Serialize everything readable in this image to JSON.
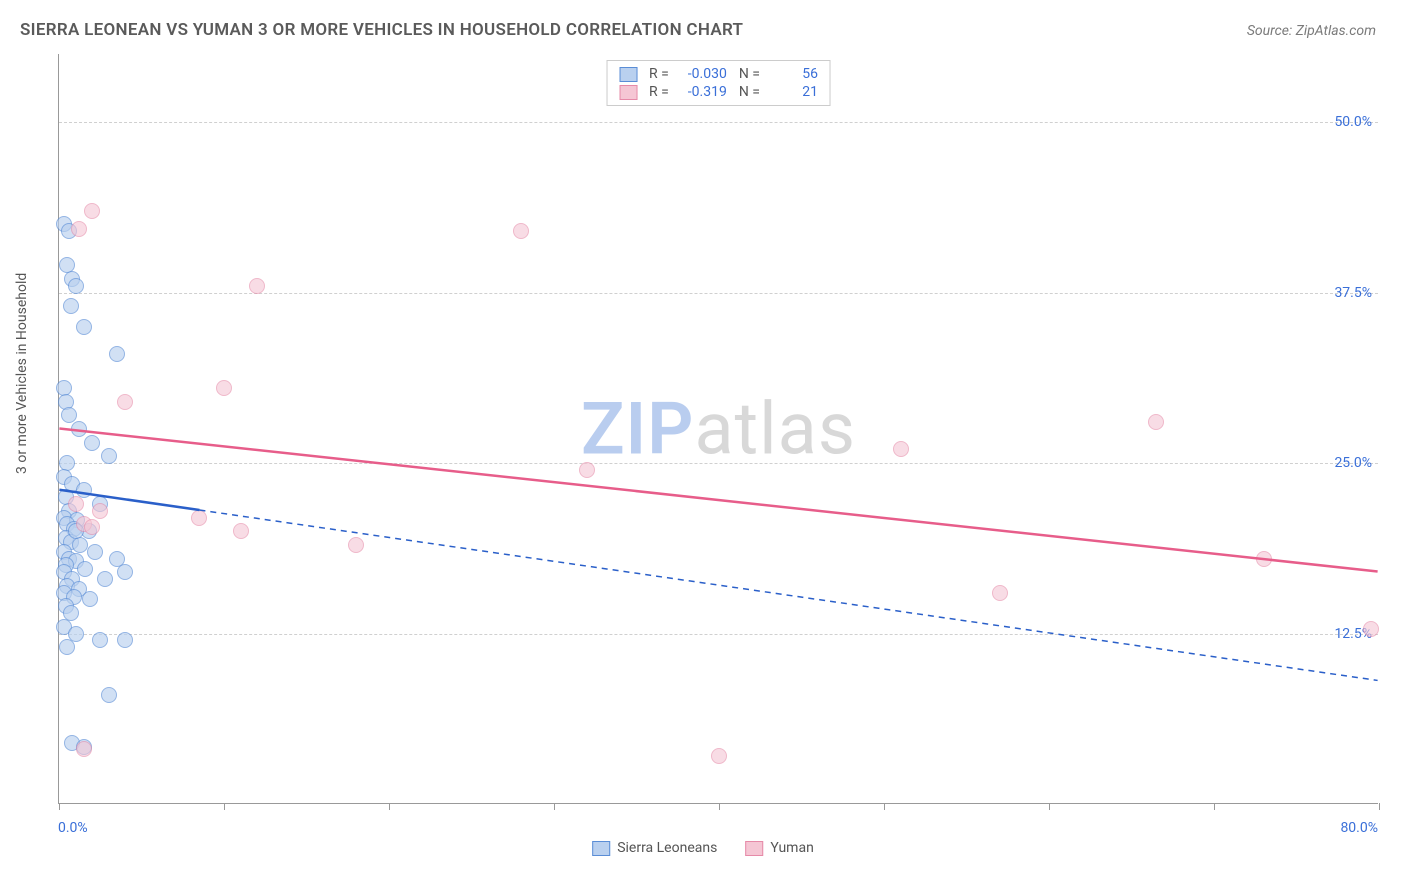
{
  "header": {
    "title": "SIERRA LEONEAN VS YUMAN 3 OR MORE VEHICLES IN HOUSEHOLD CORRELATION CHART",
    "source": "Source: ZipAtlas.com"
  },
  "chart": {
    "type": "scatter",
    "ylabel": "3 or more Vehicles in Household",
    "xlim": [
      0,
      80
    ],
    "ylim": [
      0,
      55
    ],
    "x_min_label": "0.0%",
    "x_max_label": "80.0%",
    "y_ticks": [
      12.5,
      25.0,
      37.5,
      50.0
    ],
    "y_tick_labels": [
      "12.5%",
      "25.0%",
      "37.5%",
      "50.0%"
    ],
    "x_tick_positions": [
      0,
      10,
      20,
      30,
      40,
      50,
      60,
      70,
      80
    ],
    "background_color": "#ffffff",
    "grid_color": "#d0d0d0",
    "axis_label_color": "#3a6fd8",
    "marker_radius": 8,
    "marker_stroke_width": 1.2,
    "axis_font_size": 14,
    "series": [
      {
        "name": "Sierra Leoneans",
        "fill": "#b9d0ef",
        "stroke": "#5a8dd6",
        "fill_opacity": 0.65,
        "r_value": "-0.030",
        "n_value": "56",
        "trend": {
          "x1": 0,
          "y1": 23.0,
          "x2": 80,
          "y2": 9.0,
          "solid_until_x": 8.5,
          "color": "#2a5fc9",
          "width": 2.5,
          "dash": "6,5"
        },
        "points": [
          [
            0.3,
            42.5
          ],
          [
            0.6,
            42.0
          ],
          [
            0.5,
            39.5
          ],
          [
            0.8,
            38.5
          ],
          [
            1.0,
            38.0
          ],
          [
            0.7,
            36.5
          ],
          [
            1.5,
            35.0
          ],
          [
            3.5,
            33.0
          ],
          [
            0.3,
            30.5
          ],
          [
            0.4,
            29.5
          ],
          [
            0.6,
            28.5
          ],
          [
            1.2,
            27.5
          ],
          [
            2.0,
            26.5
          ],
          [
            3.0,
            25.5
          ],
          [
            0.5,
            25.0
          ],
          [
            0.3,
            24.0
          ],
          [
            0.8,
            23.5
          ],
          [
            1.5,
            23.0
          ],
          [
            0.4,
            22.5
          ],
          [
            2.5,
            22.0
          ],
          [
            0.6,
            21.5
          ],
          [
            0.3,
            21.0
          ],
          [
            1.1,
            20.8
          ],
          [
            0.5,
            20.5
          ],
          [
            0.9,
            20.2
          ],
          [
            1.8,
            20.0
          ],
          [
            0.4,
            19.5
          ],
          [
            0.7,
            19.2
          ],
          [
            1.3,
            19.0
          ],
          [
            0.3,
            18.5
          ],
          [
            2.2,
            18.5
          ],
          [
            0.6,
            18.0
          ],
          [
            1.0,
            17.8
          ],
          [
            0.4,
            17.5
          ],
          [
            1.6,
            17.2
          ],
          [
            0.3,
            17.0
          ],
          [
            0.8,
            16.5
          ],
          [
            2.8,
            16.5
          ],
          [
            0.5,
            16.0
          ],
          [
            1.2,
            15.8
          ],
          [
            0.3,
            15.5
          ],
          [
            0.9,
            15.2
          ],
          [
            1.9,
            15.0
          ],
          [
            0.4,
            14.5
          ],
          [
            0.7,
            14.0
          ],
          [
            4.0,
            17.0
          ],
          [
            3.5,
            18.0
          ],
          [
            0.3,
            13.0
          ],
          [
            1.0,
            12.5
          ],
          [
            2.5,
            12.0
          ],
          [
            4.0,
            12.0
          ],
          [
            0.5,
            11.5
          ],
          [
            3.0,
            8.0
          ],
          [
            0.8,
            4.5
          ],
          [
            1.5,
            4.2
          ],
          [
            1.0,
            20.0
          ]
        ]
      },
      {
        "name": "Yuman",
        "fill": "#f5c6d4",
        "stroke": "#e68aa8",
        "fill_opacity": 0.6,
        "r_value": "-0.319",
        "n_value": "21",
        "trend": {
          "x1": 0,
          "y1": 27.5,
          "x2": 80,
          "y2": 17.0,
          "solid_until_x": 80,
          "color": "#e75d8a",
          "width": 2.5,
          "dash": null
        },
        "points": [
          [
            2.0,
            43.5
          ],
          [
            1.2,
            42.2
          ],
          [
            12.0,
            38.0
          ],
          [
            10.0,
            30.5
          ],
          [
            4.0,
            29.5
          ],
          [
            28.0,
            42.0
          ],
          [
            1.0,
            22.0
          ],
          [
            8.5,
            21.0
          ],
          [
            11.0,
            20.0
          ],
          [
            18.0,
            19.0
          ],
          [
            1.5,
            20.5
          ],
          [
            32.0,
            24.5
          ],
          [
            51.0,
            26.0
          ],
          [
            66.5,
            28.0
          ],
          [
            57.0,
            15.5
          ],
          [
            73.0,
            18.0
          ],
          [
            79.5,
            12.8
          ],
          [
            40.0,
            3.5
          ],
          [
            1.5,
            4.0
          ],
          [
            2.0,
            20.3
          ],
          [
            2.5,
            21.5
          ]
        ]
      }
    ],
    "legend": {
      "bottom_items": [
        "Sierra Leoneans",
        "Yuman"
      ]
    },
    "watermark": {
      "part1": "ZIP",
      "part2": "atlas"
    }
  }
}
